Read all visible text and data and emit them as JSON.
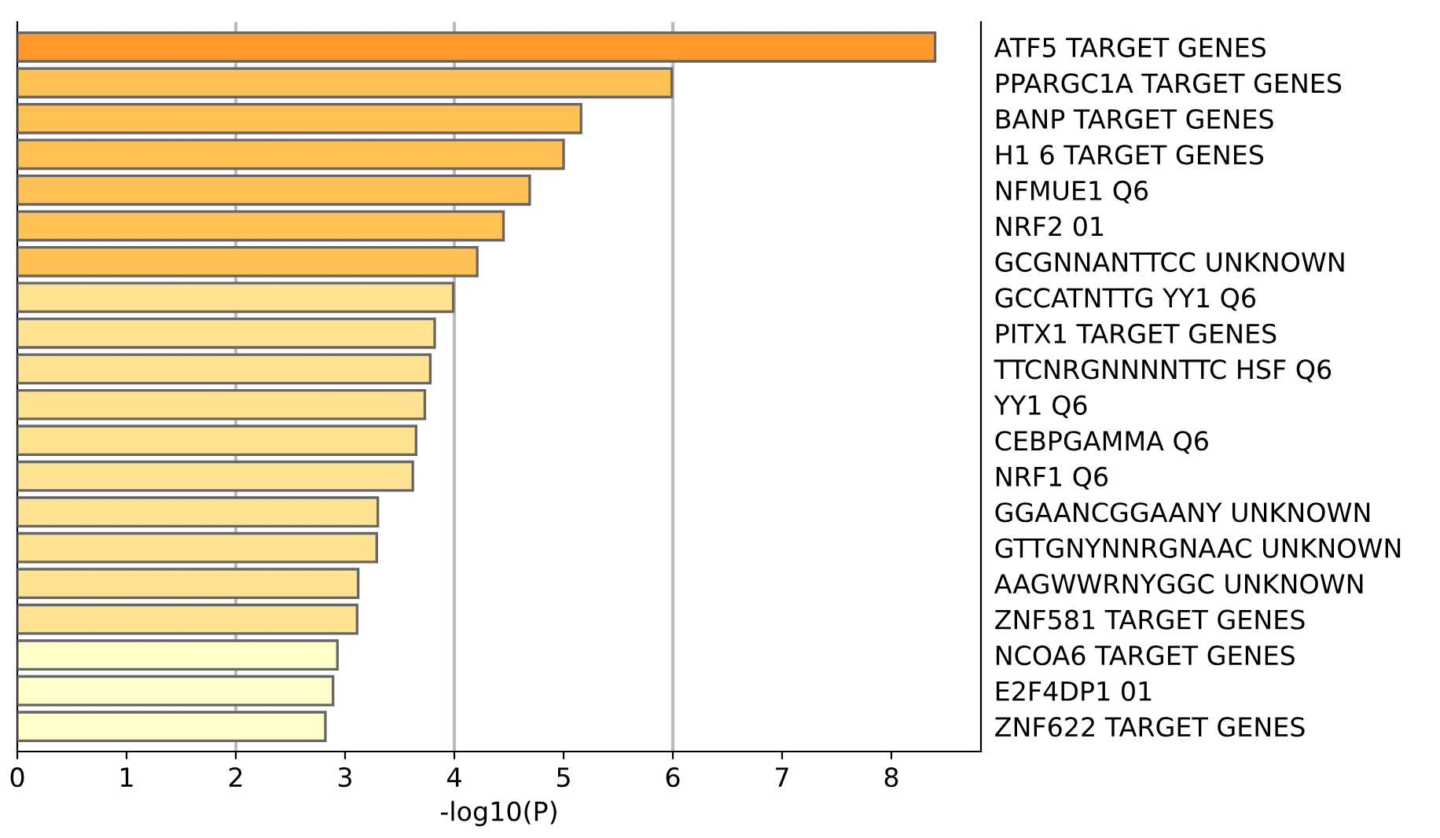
{
  "chart_data": {
    "type": "bar",
    "orientation": "horizontal",
    "xlabel": "-log10(P)",
    "categories": [
      "ATF5 TARGET GENES",
      "PPARGC1A TARGET GENES",
      "BANP TARGET GENES",
      "H1 6 TARGET GENES",
      "NFMUE1 Q6",
      "NRF2 01",
      "GCGNNANTTCC UNKNOWN",
      "GCCATNTTG YY1 Q6",
      "PITX1 TARGET GENES",
      "TTCNRGNNNNTTC HSF Q6",
      "YY1 Q6",
      "CEBPGAMMA Q6",
      "NRF1 Q6",
      "GGAANCGGAANY UNKNOWN",
      "GTTGNYNNRGNAAC UNKNOWN",
      "AAGWWRNYGGC UNKNOWN",
      "ZNF581 TARGET GENES",
      "NCOA6 TARGET GENES",
      "E2F4DP1 01",
      "ZNF622 TARGET GENES"
    ],
    "values": [
      8.4,
      5.99,
      5.16,
      5.0,
      4.69,
      4.45,
      4.21,
      3.99,
      3.82,
      3.78,
      3.73,
      3.65,
      3.62,
      3.3,
      3.29,
      3.12,
      3.11,
      2.93,
      2.89,
      2.82
    ],
    "colors": [
      "#ff9a2e",
      "#ffc254",
      "#ffc254",
      "#ffc254",
      "#ffc254",
      "#ffc254",
      "#ffc254",
      "#ffe292",
      "#ffe292",
      "#ffe292",
      "#ffe292",
      "#ffe292",
      "#ffe292",
      "#ffe292",
      "#ffe292",
      "#ffe292",
      "#ffe292",
      "#ffffcc",
      "#ffffcc",
      "#ffffcc"
    ],
    "xlim": [
      0,
      8.82
    ],
    "xticks": [
      0,
      1,
      2,
      3,
      4,
      5,
      6,
      7,
      8
    ],
    "ref_lines": [
      {
        "axis": "x",
        "value": 2,
        "color": "#bbbbbb"
      },
      {
        "axis": "x",
        "value": 4,
        "color": "#bbbbbb"
      },
      {
        "axis": "x",
        "value": 6,
        "color": "#bbbbbb"
      }
    ],
    "grid": false,
    "legend": false
  }
}
